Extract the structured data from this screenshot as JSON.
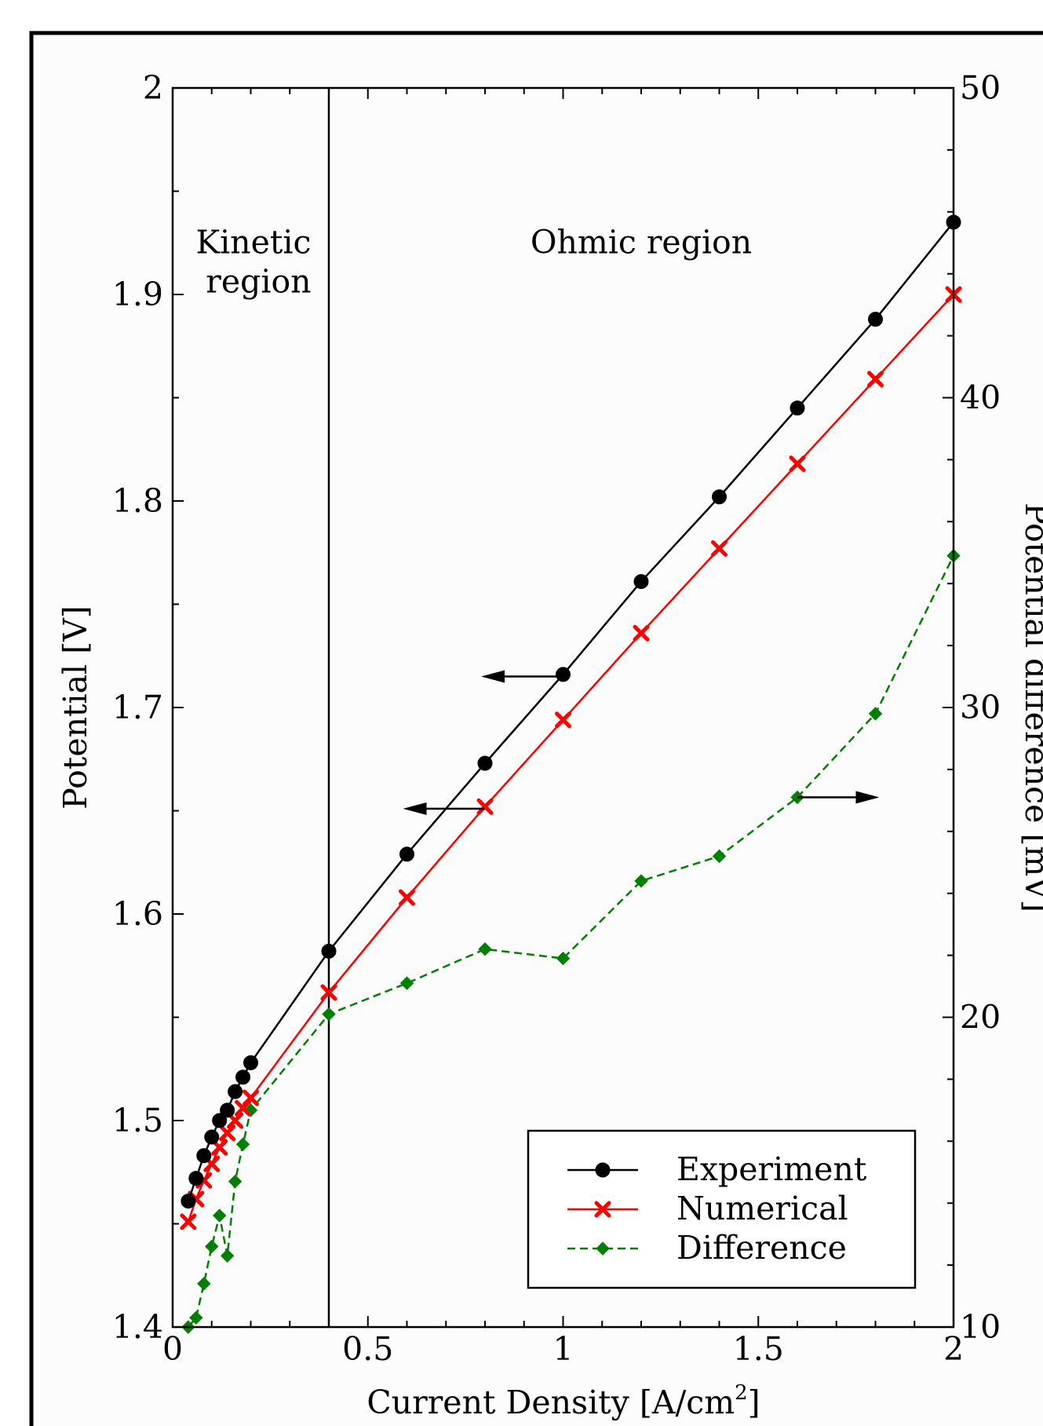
{
  "chart_data": {
    "type": "line",
    "xlabel": "Current Density [A/cm",
    "xlabel_sup": "2",
    "xlabel_end": "]",
    "ylabel_left": "Potential [V]",
    "ylabel_right": "Potential difference [mV]",
    "xlim": [
      0,
      2
    ],
    "ylim_left": [
      1.4,
      2.0
    ],
    "ylim_right": [
      10,
      50
    ],
    "x_ticks": [
      {
        "value": 0,
        "label": "0"
      },
      {
        "value": 0.5,
        "label": "0.5"
      },
      {
        "value": 1,
        "label": "1"
      },
      {
        "value": 1.5,
        "label": "1.5"
      },
      {
        "value": 2,
        "label": "2"
      }
    ],
    "y_left_ticks": [
      {
        "value": 1.4,
        "label": "1.4"
      },
      {
        "value": 1.5,
        "label": "1.5"
      },
      {
        "value": 1.6,
        "label": "1.6"
      },
      {
        "value": 1.7,
        "label": "1.7"
      },
      {
        "value": 1.8,
        "label": "1.8"
      },
      {
        "value": 1.9,
        "label": "1.9"
      },
      {
        "value": 2.0,
        "label": "2"
      }
    ],
    "y_right_ticks": [
      {
        "value": 10,
        "label": "10"
      },
      {
        "value": 20,
        "label": "20"
      },
      {
        "value": 30,
        "label": "30"
      },
      {
        "value": 40,
        "label": "40"
      },
      {
        "value": 50,
        "label": "50"
      }
    ],
    "vertical_line_x": 0.4,
    "annotations": [
      {
        "name": "kinetic-region-label",
        "lines": [
          "Kinetic",
          "region"
        ],
        "x": 0.22,
        "y": 1.915
      },
      {
        "name": "ohmic-region-label",
        "lines": [
          "Ohmic region"
        ],
        "x": 1.2,
        "y": 1.915
      }
    ],
    "arrows": [
      {
        "name": "arrow-experiment-to-left-axis",
        "from": [
          1.0,
          1.715
        ],
        "to": [
          0.79,
          1.715
        ]
      },
      {
        "name": "arrow-numerical-to-left-axis",
        "from": [
          0.8,
          1.651
        ],
        "to": [
          0.59,
          1.651
        ]
      },
      {
        "name": "arrow-difference-to-right-axis",
        "from": [
          1.6,
          27.1
        ],
        "to": [
          1.81,
          27.1
        ]
      }
    ],
    "series": [
      {
        "name": "Experiment",
        "axis": "left",
        "color": "#000000",
        "marker": "circle",
        "dash": "",
        "x": [
          0.04,
          0.06,
          0.08,
          0.1,
          0.12,
          0.14,
          0.16,
          0.18,
          0.2,
          0.4,
          0.6,
          0.8,
          1.0,
          1.2,
          1.4,
          1.6,
          1.8,
          2.0
        ],
        "y": [
          1.461,
          1.472,
          1.483,
          1.492,
          1.5,
          1.505,
          1.514,
          1.521,
          1.528,
          1.582,
          1.629,
          1.673,
          1.716,
          1.761,
          1.802,
          1.845,
          1.888,
          1.935
        ]
      },
      {
        "name": "Numerical",
        "axis": "left",
        "color": "#ff0000",
        "marker": "x",
        "dash": "",
        "x": [
          0.04,
          0.06,
          0.08,
          0.1,
          0.12,
          0.14,
          0.16,
          0.18,
          0.2,
          0.4,
          0.6,
          0.8,
          1.0,
          1.2,
          1.4,
          1.6,
          1.8,
          2.0
        ],
        "y": [
          1.451,
          1.462,
          1.471,
          1.479,
          1.487,
          1.494,
          1.5,
          1.506,
          1.511,
          1.562,
          1.608,
          1.652,
          1.694,
          1.736,
          1.777,
          1.818,
          1.859,
          1.9
        ]
      },
      {
        "name": "Difference",
        "axis": "right",
        "color": "#008000",
        "marker": "diamond",
        "dash": "10,6",
        "x": [
          0.04,
          0.06,
          0.08,
          0.1,
          0.12,
          0.14,
          0.16,
          0.18,
          0.2,
          0.4,
          0.6,
          0.8,
          1.0,
          1.2,
          1.4,
          1.6,
          1.8,
          2.0
        ],
        "y": [
          10.0,
          10.3,
          11.4,
          12.6,
          13.6,
          12.3,
          14.7,
          15.9,
          17.0,
          20.1,
          21.1,
          22.2,
          21.9,
          24.4,
          25.2,
          27.1,
          29.8,
          34.9
        ]
      }
    ],
    "legend": {
      "placement": "bottom-right",
      "entries": [
        "Experiment",
        "Numerical",
        "Difference"
      ]
    },
    "grid": false
  }
}
